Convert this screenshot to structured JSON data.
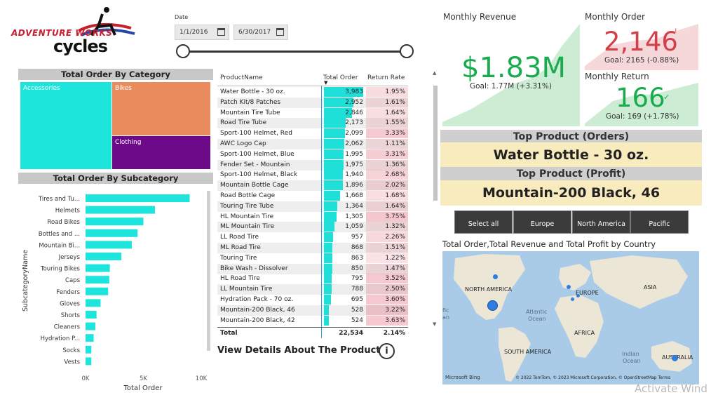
{
  "logo": {
    "line1": "ADVENTURE WORKS",
    "line2": "cycles"
  },
  "date_slicer": {
    "label": "Date",
    "start": "1/1/2016",
    "end": "6/30/2017"
  },
  "treemap": {
    "title": "Total Order By Category",
    "items": [
      {
        "label": "Accessories",
        "color": "#1ee5dc"
      },
      {
        "label": "Bikes",
        "color": "#eb8c5e"
      },
      {
        "label": "Clothing",
        "color": "#6c0a8a"
      }
    ]
  },
  "subcategory_chart": {
    "title": "Total Order By Subcategory",
    "chart_data": {
      "type": "bar",
      "orientation": "horizontal",
      "categories": [
        "Tires and Tu...",
        "Helmets",
        "Road Bikes",
        "Bottles and ...",
        "Mountain Bi...",
        "Jerseys",
        "Touring Bikes",
        "Caps",
        "Fenders",
        "Gloves",
        "Shorts",
        "Cleaners",
        "Hydration P...",
        "Socks",
        "Vests"
      ],
      "values": [
        9000,
        6000,
        5000,
        4500,
        4000,
        3100,
        2100,
        2050,
        1950,
        1300,
        950,
        850,
        700,
        500,
        500
      ],
      "xlabel": "Total Order",
      "ylabel": "SubcategoryName",
      "xlim": [
        0,
        10000
      ],
      "xticks": [
        "0K",
        "5K",
        "10K"
      ],
      "color": "#1ee5dc"
    }
  },
  "table": {
    "headers": {
      "name": "ProductName",
      "orders": "Total Order",
      "rate": "Return Rate"
    },
    "rows": [
      {
        "name": "Water Bottle - 30 oz.",
        "orders": "3,983",
        "rate": "1.95%",
        "o": 3983,
        "r": 1.95
      },
      {
        "name": "Patch Kit/8 Patches",
        "orders": "2,952",
        "rate": "1.61%",
        "o": 2952,
        "r": 1.61
      },
      {
        "name": "Mountain Tire Tube",
        "orders": "2,846",
        "rate": "1.64%",
        "o": 2846,
        "r": 1.64
      },
      {
        "name": "Road Tire Tube",
        "orders": "2,173",
        "rate": "1.55%",
        "o": 2173,
        "r": 1.55
      },
      {
        "name": "Sport-100 Helmet, Red",
        "orders": "2,099",
        "rate": "3.33%",
        "o": 2099,
        "r": 3.33
      },
      {
        "name": "AWC Logo Cap",
        "orders": "2,062",
        "rate": "1.11%",
        "o": 2062,
        "r": 1.11
      },
      {
        "name": "Sport-100 Helmet, Blue",
        "orders": "1,995",
        "rate": "3.31%",
        "o": 1995,
        "r": 3.31
      },
      {
        "name": "Fender Set - Mountain",
        "orders": "1,975",
        "rate": "1.36%",
        "o": 1975,
        "r": 1.36
      },
      {
        "name": "Sport-100 Helmet, Black",
        "orders": "1,940",
        "rate": "2.68%",
        "o": 1940,
        "r": 2.68
      },
      {
        "name": "Mountain Bottle Cage",
        "orders": "1,896",
        "rate": "2.02%",
        "o": 1896,
        "r": 2.02
      },
      {
        "name": "Road Bottle Cage",
        "orders": "1,668",
        "rate": "1.68%",
        "o": 1668,
        "r": 1.68
      },
      {
        "name": "Touring Tire Tube",
        "orders": "1,364",
        "rate": "1.64%",
        "o": 1364,
        "r": 1.64
      },
      {
        "name": "HL Mountain Tire",
        "orders": "1,305",
        "rate": "3.75%",
        "o": 1305,
        "r": 3.75
      },
      {
        "name": "ML Mountain Tire",
        "orders": "1,059",
        "rate": "1.32%",
        "o": 1059,
        "r": 1.32
      },
      {
        "name": "LL Road Tire",
        "orders": "957",
        "rate": "2.26%",
        "o": 957,
        "r": 2.26
      },
      {
        "name": "ML Road Tire",
        "orders": "868",
        "rate": "1.51%",
        "o": 868,
        "r": 1.51
      },
      {
        "name": "Touring Tire",
        "orders": "863",
        "rate": "1.22%",
        "o": 863,
        "r": 1.22
      },
      {
        "name": "Bike Wash - Dissolver",
        "orders": "850",
        "rate": "1.47%",
        "o": 850,
        "r": 1.47
      },
      {
        "name": "HL Road Tire",
        "orders": "795",
        "rate": "3.52%",
        "o": 795,
        "r": 3.52
      },
      {
        "name": "LL Mountain Tire",
        "orders": "788",
        "rate": "2.50%",
        "o": 788,
        "r": 2.5
      },
      {
        "name": "Hydration Pack - 70 oz.",
        "orders": "695",
        "rate": "3.60%",
        "o": 695,
        "r": 3.6
      },
      {
        "name": "Mountain-200 Black, 46",
        "orders": "528",
        "rate": "3.22%",
        "o": 528,
        "r": 3.22
      },
      {
        "name": "Mountain-200 Black, 42",
        "orders": "524",
        "rate": "3.63%",
        "o": 524,
        "r": 3.63
      }
    ],
    "total": {
      "label": "Total",
      "orders": "22,534",
      "rate": "2.14%"
    }
  },
  "details_link": "View Details About The Product",
  "kpis": {
    "revenue": {
      "title": "Monthly Revenue",
      "value": "$1.83M",
      "goal": "Goal: 1.77M (+3.31%)",
      "color": "#1aab4e"
    },
    "order": {
      "title": "Monthly Order",
      "value": "2,146",
      "goal": "Goal: 2165 (-0.88%)",
      "color": "#d3404a"
    },
    "return": {
      "title": "Monthly Return",
      "value": "166",
      "goal": "Goal: 169 (+1.78%)",
      "color": "#1aab4e"
    }
  },
  "top_product": {
    "orders_title": "Top Product (Orders)",
    "orders_value": "Water Bottle - 30 oz.",
    "profit_title": "Top Product (Profit)",
    "profit_value": "Mountain-200 Black, 46"
  },
  "regions": [
    "Select all",
    "Europe",
    "North America",
    "Pacific"
  ],
  "map": {
    "title": "Total Order,Total Revenue and Total Profit by Country",
    "labels": {
      "na": "NORTH AMERICA",
      "eu": "EUROPE",
      "asia": "ASIA",
      "africa": "AFRICA",
      "sa": "SOUTH AMERICA",
      "aus": "AUSTRALIA",
      "atl1": "Atlantic",
      "atl2": "Ocean",
      "ind1": "Indian",
      "ind2": "Ocean",
      "pac1": "fic",
      "pac2": "an"
    },
    "footer": "© 2022 TomTom, © 2023 Microsoft Corporation, © OpenStreetMap  Terms",
    "brand": "Microsoft Bing"
  },
  "watermark": "Activate Wind"
}
